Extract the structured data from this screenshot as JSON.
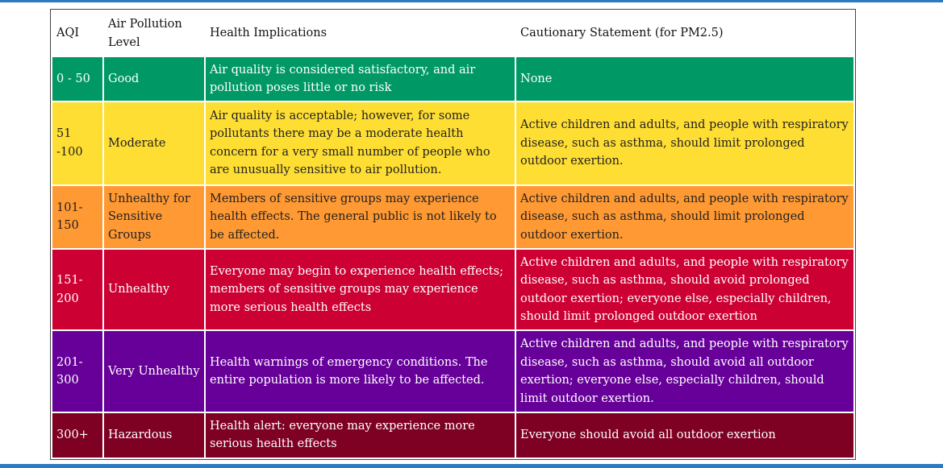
{
  "table": {
    "headers": [
      "AQI",
      "Air Pollution Level",
      "Health Implications",
      "Cautionary Statement (for PM2.5)"
    ],
    "rows": [
      {
        "aqi": "0 - 50",
        "level": "Good",
        "health": "Air quality is considered satisfactory, and air pollution poses little or no risk",
        "caution": "None",
        "bg": "#009966",
        "fg": "#ffffff"
      },
      {
        "aqi": "51 -100",
        "level": "Moderate",
        "health": "Air quality is acceptable; however, for some pollutants there may be a moderate health concern for a very small number of people who are unusually sensitive to air pollution.",
        "caution": "Active children and adults, and people with respiratory disease, such as asthma, should limit prolonged outdoor exertion.",
        "bg": "#ffde33",
        "fg": "#222222"
      },
      {
        "aqi": "101-150",
        "level": "Unhealthy for Sensitive Groups",
        "health": "Members of sensitive groups may experience health effects. The general public is not likely to be affected.",
        "caution": "Active children and adults, and people with respiratory disease, such as asthma, should limit prolonged outdoor exertion.",
        "bg": "#ff9933",
        "fg": "#222222"
      },
      {
        "aqi": "151-200",
        "level": "Unhealthy",
        "health": "Everyone may begin to experience health effects; members of sensitive groups may experience more serious health effects",
        "caution": "Active children and adults, and people with respiratory disease, such as asthma, should avoid prolonged outdoor exertion; everyone else, especially children, should limit prolonged outdoor exertion",
        "bg": "#cc0033",
        "fg": "#ffffff"
      },
      {
        "aqi": "201-300",
        "level": "Very Unhealthy",
        "health": "Health warnings of emergency conditions. The entire population is more likely to be affected.",
        "caution": "Active children and adults, and people with respiratory disease, such as asthma, should avoid all outdoor exertion; everyone else, especially children, should limit outdoor exertion.",
        "bg": "#660099",
        "fg": "#ffffff"
      },
      {
        "aqi": "300+",
        "level": "Hazardous",
        "health": "Health alert: everyone may experience more serious health effects",
        "caution": "Everyone should avoid all outdoor exertion",
        "bg": "#7e0023",
        "fg": "#ffffff"
      }
    ]
  }
}
